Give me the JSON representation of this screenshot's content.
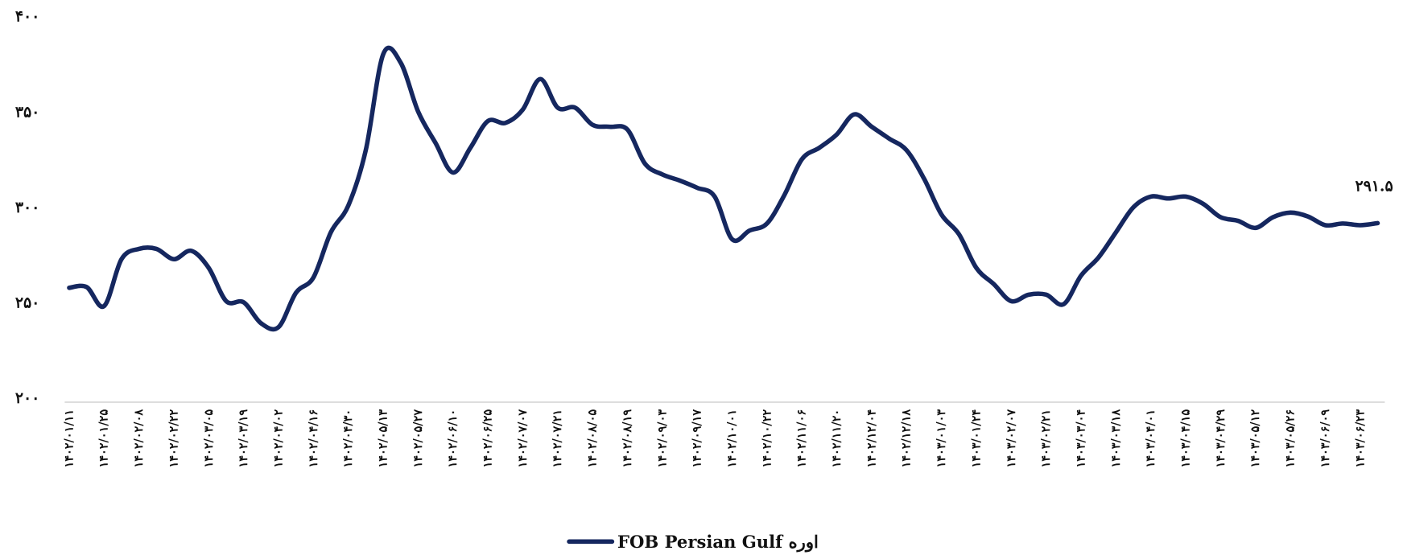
{
  "chart_data": {
    "type": "line",
    "categories": [
      "۱۴۰۲/۰۱/۱۱",
      null,
      "۱۴۰۲/۰۱/۲۵",
      null,
      "۱۴۰۲/۰۲/۰۸",
      null,
      "۱۴۰۲/۰۲/۲۲",
      null,
      "۱۴۰۲/۰۳/۰۵",
      null,
      "۱۴۰۲/۰۳/۱۹",
      null,
      "۱۴۰۲/۰۴/۰۲",
      null,
      "۱۴۰۲/۰۴/۱۶",
      null,
      "۱۴۰۲/۰۴/۳۰",
      null,
      "۱۴۰۲/۰۵/۱۳",
      null,
      "۱۴۰۲/۰۵/۲۷",
      null,
      "۱۴۰۲/۰۶/۱۰",
      null,
      "۱۴۰۲/۰۶/۲۵",
      null,
      "۱۴۰۲/۰۷/۰۷",
      null,
      "۱۴۰۲/۰۷/۲۱",
      null,
      "۱۴۰۲/۰۸/۰۵",
      null,
      "۱۴۰۲/۰۸/۱۹",
      null,
      "۱۴۰۲/۰۹/۰۳",
      null,
      "۱۴۰۲/۰۹/۱۷",
      null,
      "۱۴۰۲/۱۰/۰۱",
      null,
      "۱۴۰۲/۱۰/۲۲",
      null,
      "۱۴۰۲/۱۱/۰۶",
      null,
      "۱۴۰۲/۱۱/۲۰",
      null,
      "۱۴۰۲/۱۲/۰۴",
      null,
      "۱۴۰۲/۱۲/۱۸",
      null,
      "۱۴۰۳/۰۱/۰۳",
      null,
      "۱۴۰۳/۰۱/۲۴",
      null,
      "۱۴۰۳/۰۲/۰۷",
      null,
      "۱۴۰۳/۰۲/۲۱",
      null,
      "۱۴۰۳/۰۳/۰۴",
      null,
      "۱۴۰۳/۰۳/۱۸",
      null,
      "۱۴۰۳/۰۴/۰۱",
      null,
      "۱۴۰۳/۰۴/۱۵",
      null,
      "۱۴۰۳/۰۴/۲۹",
      null,
      "۱۴۰۳/۰۵/۱۲",
      null,
      "۱۴۰۳/۰۵/۲۶",
      null,
      "۱۴۰۳/۰۶/۰۹",
      null,
      "۱۴۰۳/۰۶/۲۳",
      null
    ],
    "series": [
      {
        "name": "FOB Persian Gulf اوره",
        "color": "#15275f",
        "values": [
          257.6,
          258,
          248,
          272.6,
          278,
          278,
          272.6,
          277,
          268,
          250.6,
          250,
          239,
          237,
          255,
          263,
          286.7,
          300.7,
          329.7,
          380,
          375.6,
          350,
          333.5,
          318,
          331,
          345,
          344,
          351,
          367,
          352,
          352,
          343,
          342,
          340.5,
          322.7,
          317,
          313.8,
          310,
          305.4,
          283,
          287.6,
          291.3,
          306.3,
          325,
          331,
          338,
          348.5,
          342,
          335.8,
          329.7,
          314.8,
          296,
          285.7,
          268,
          259.5,
          250.6,
          254,
          254,
          249,
          264,
          273.5,
          286.7,
          299.8,
          305.4,
          304.4,
          305.4,
          301.6,
          294.6,
          292.7,
          289,
          294.6,
          297,
          295,
          290.4,
          291.3,
          290.4,
          291.5
        ],
        "value_labels": [
          null,
          null,
          null,
          null,
          null,
          null,
          null,
          null,
          null,
          null,
          null,
          null,
          null,
          null,
          null,
          null,
          null,
          null,
          null,
          null,
          null,
          null,
          null,
          null,
          null,
          null,
          null,
          null,
          null,
          null,
          null,
          null,
          null,
          null,
          null,
          null,
          null,
          null,
          null,
          null,
          null,
          null,
          null,
          null,
          null,
          null,
          null,
          null,
          null,
          null,
          null,
          null,
          null,
          null,
          null,
          null,
          null,
          null,
          null,
          null,
          null,
          null,
          null,
          null,
          null,
          null,
          null,
          null,
          null,
          null,
          null,
          null,
          null,
          null,
          null,
          "۲۹۱.۵"
        ]
      }
    ],
    "ylim": [
      200,
      400
    ],
    "yticks": [
      {
        "value": 200,
        "label": "۲۰۰"
      },
      {
        "value": 250,
        "label": "۲۵۰"
      },
      {
        "value": 300,
        "label": "۳۰۰"
      },
      {
        "value": 350,
        "label": "۳۵۰"
      },
      {
        "value": 400,
        "label": "۴۰۰"
      }
    ],
    "grid": false,
    "legend": "bottom"
  }
}
